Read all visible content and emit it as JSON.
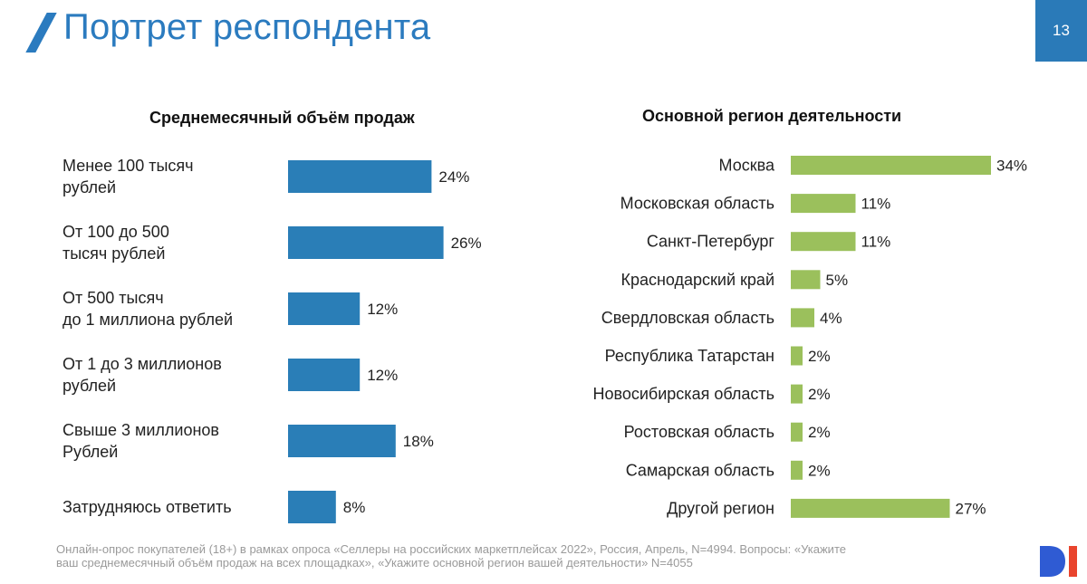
{
  "header": {
    "title": "Портрет респондента",
    "page_number": "13"
  },
  "colors": {
    "accent_blue": "#2b7bbf",
    "bar_blue": "#2a7eb7",
    "bar_green": "#9bc05c",
    "logo_blue": "#2f5bd3",
    "logo_red": "#e9442d"
  },
  "chart_data": [
    {
      "type": "bar",
      "orientation": "horizontal",
      "title": "Среднемесячный объём продаж",
      "categories": [
        [
          "Менее 100 тысяч",
          "рублей"
        ],
        [
          "От 100 до 500",
          "тысяч рублей"
        ],
        [
          "От 500 тысяч",
          "до 1 миллиона рублей"
        ],
        [
          "От 1 до 3 миллионов",
          "рублей"
        ],
        [
          "Свыше 3 миллионов",
          "Рублей"
        ],
        [
          "Затрудняюсь ответить"
        ]
      ],
      "values": [
        24,
        26,
        12,
        12,
        18,
        8
      ],
      "labels": [
        "24%",
        "26%",
        "12%",
        "12%",
        "18%",
        "8%"
      ],
      "unit": "%",
      "xlim": [
        0,
        40
      ]
    },
    {
      "type": "bar",
      "orientation": "horizontal",
      "title": "Основной регион деятельности",
      "categories": [
        "Москва",
        "Московская область",
        "Санкт-Петербург",
        "Краснодарский край",
        "Свердловская область",
        "Республика Татарстан",
        "Новосибирская область",
        "Ростовская область",
        "Самарская область",
        "Другой регион"
      ],
      "values": [
        34,
        11,
        11,
        5,
        4,
        2,
        2,
        2,
        2,
        27
      ],
      "labels": [
        "34%",
        "11%",
        "11%",
        "5%",
        "4%",
        "2%",
        "2%",
        "2%",
        "2%",
        "27%"
      ],
      "unit": "%",
      "xlim": [
        0,
        40
      ]
    }
  ],
  "footnote": {
    "line1": "Онлайн-опрос покупателей (18+) в рамках опроса «Селлеры на российских маркетплейсах 2022», Россия, Апрель, N=4994. Вопросы: «Укажите",
    "line2": "ваш  среднемесячный объём продаж на всех площадках», «Укажите основной регион вашей деятельности» N=4055"
  },
  "logo": {
    "icon": "di-logo-icon"
  }
}
